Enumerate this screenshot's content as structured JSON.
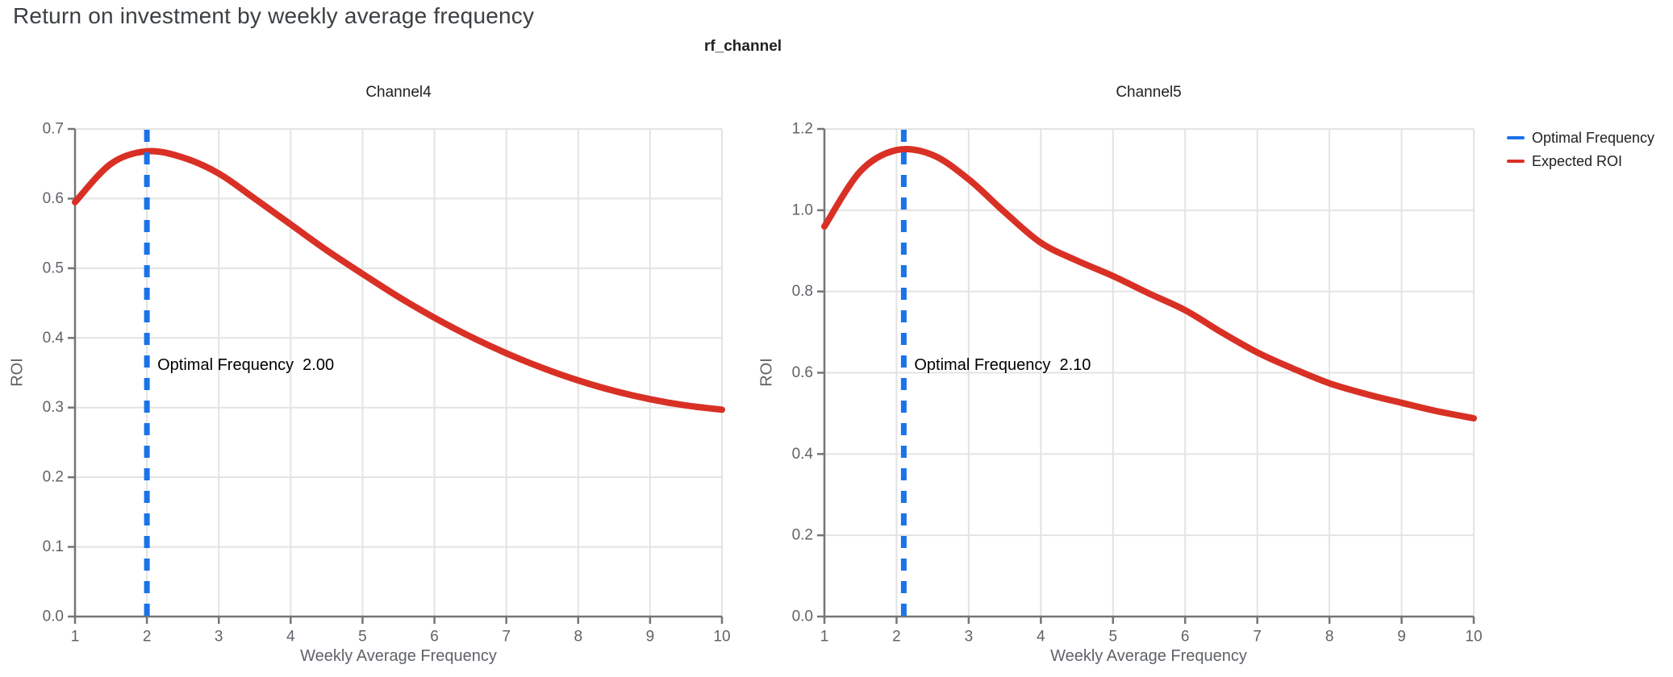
{
  "page": {
    "title": "Return on investment by weekly average frequency",
    "facet_title": "rf_channel"
  },
  "legend": {
    "items": [
      {
        "label": "Optimal Frequency",
        "color": "#1a73e8"
      },
      {
        "label": "Expected ROI",
        "color": "#d93025"
      }
    ]
  },
  "chart_data": [
    {
      "type": "line",
      "title": "Channel4",
      "xlabel": "Weekly Average Frequency",
      "ylabel": "ROI",
      "xlim": [
        1,
        10
      ],
      "ylim": [
        0,
        0.7
      ],
      "grid": true,
      "x_ticks": {
        "values": [
          1,
          2,
          3,
          4,
          5,
          6,
          7,
          8,
          9,
          10
        ],
        "labels": [
          "1",
          "2",
          "3",
          "4",
          "5",
          "6",
          "7",
          "8",
          "9",
          "10"
        ]
      },
      "y_ticks": {
        "values": [
          0,
          0.1,
          0.2,
          0.3,
          0.4,
          0.5,
          0.6,
          0.7
        ],
        "labels": [
          "0.0",
          "0.1",
          "0.2",
          "0.3",
          "0.4",
          "0.5",
          "0.6",
          "0.7"
        ]
      },
      "series": [
        {
          "name": "Expected ROI",
          "color": "#d93025",
          "x": [
            1,
            1.5,
            2,
            2.5,
            3,
            3.5,
            4,
            4.5,
            5,
            5.5,
            6,
            6.5,
            7,
            7.5,
            8,
            8.5,
            9,
            9.5,
            10
          ],
          "y": [
            0.595,
            0.65,
            0.668,
            0.659,
            0.636,
            0.6,
            0.563,
            0.526,
            0.492,
            0.459,
            0.429,
            0.402,
            0.378,
            0.357,
            0.339,
            0.324,
            0.312,
            0.303,
            0.297
          ]
        }
      ],
      "optimal_frequency": {
        "name": "Optimal Frequency",
        "value": 2.0,
        "label": "Optimal Frequency",
        "value_label": "2.00",
        "color": "#1a73e8",
        "style": "dashed"
      }
    },
    {
      "type": "line",
      "title": "Channel5",
      "xlabel": "Weekly Average Frequency",
      "ylabel": "ROI",
      "xlim": [
        1,
        10
      ],
      "ylim": [
        0,
        1.2
      ],
      "grid": true,
      "x_ticks": {
        "values": [
          1,
          2,
          3,
          4,
          5,
          6,
          7,
          8,
          9,
          10
        ],
        "labels": [
          "1",
          "2",
          "3",
          "4",
          "5",
          "6",
          "7",
          "8",
          "9",
          "10"
        ]
      },
      "y_ticks": {
        "values": [
          0,
          0.2,
          0.4,
          0.6,
          0.8,
          1.0,
          1.2
        ],
        "labels": [
          "0.0",
          "0.2",
          "0.4",
          "0.6",
          "0.8",
          "1.0",
          "1.2"
        ]
      },
      "series": [
        {
          "name": "Expected ROI",
          "color": "#d93025",
          "x": [
            1,
            1.5,
            2,
            2.5,
            3,
            3.5,
            4,
            4.5,
            5,
            5.5,
            6,
            6.5,
            7,
            7.5,
            8,
            8.5,
            9,
            9.5,
            10
          ],
          "y": [
            0.96,
            1.096,
            1.148,
            1.136,
            1.076,
            0.995,
            0.92,
            0.876,
            0.838,
            0.795,
            0.754,
            0.7,
            0.65,
            0.61,
            0.574,
            0.548,
            0.526,
            0.505,
            0.488
          ]
        }
      ],
      "optimal_frequency": {
        "name": "Optimal Frequency",
        "value": 2.1,
        "label": "Optimal Frequency",
        "value_label": "2.10",
        "color": "#1a73e8",
        "style": "dashed"
      }
    }
  ]
}
